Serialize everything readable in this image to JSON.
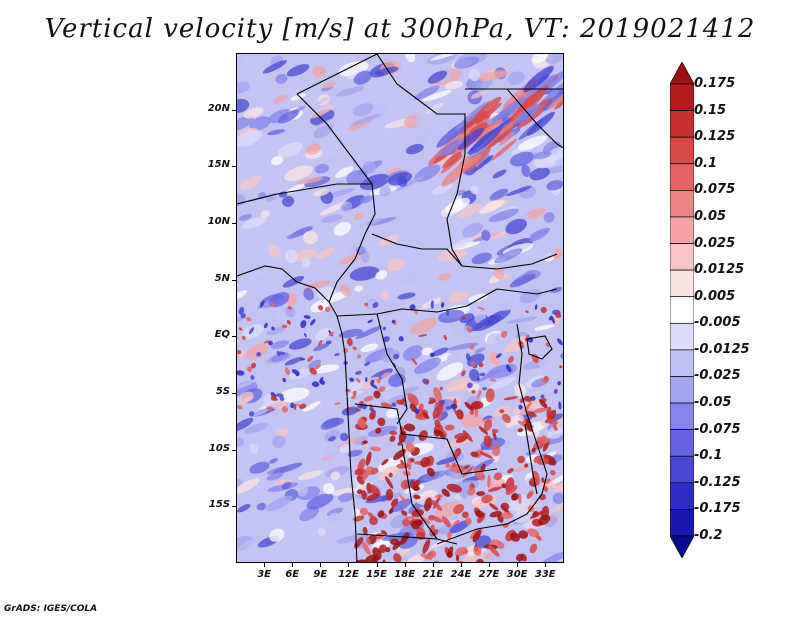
{
  "title": "Vertical velocity [m/s] at 300hPa, VT: 2019021412",
  "footer": "GrADS: IGES/COLA",
  "map": {
    "variable": "Vertical velocity",
    "units": "m/s",
    "level": "300hPa",
    "valid_time": "2019021412",
    "lon_range": [
      0,
      35
    ],
    "lat_range": [
      -20,
      25
    ],
    "lat_labels": [
      {
        "label": "20N",
        "lat": 20
      },
      {
        "label": "15N",
        "lat": 15
      },
      {
        "label": "10N",
        "lat": 10
      },
      {
        "label": "5N",
        "lat": 5
      },
      {
        "label": "EQ",
        "lat": 0
      },
      {
        "label": "5S",
        "lat": -5
      },
      {
        "label": "10S",
        "lat": -10
      },
      {
        "label": "15S",
        "lat": -15
      }
    ],
    "lon_labels": [
      {
        "label": "3E",
        "lon": 3
      },
      {
        "label": "6E",
        "lon": 6
      },
      {
        "label": "9E",
        "lon": 9
      },
      {
        "label": "12E",
        "lon": 12
      },
      {
        "label": "15E",
        "lon": 15
      },
      {
        "label": "18E",
        "lon": 18
      },
      {
        "label": "21E",
        "lon": 21
      },
      {
        "label": "24E",
        "lon": 24
      },
      {
        "label": "27E",
        "lon": 27
      },
      {
        "label": "30E",
        "lon": 30
      },
      {
        "label": "33E",
        "lon": 33
      }
    ]
  },
  "colorbar": {
    "levels": [
      "0.175",
      "0.15",
      "0.125",
      "0.1",
      "0.075",
      "0.05",
      "0.025",
      "0.0125",
      "0.005",
      "-0.005",
      "-0.0125",
      "-0.025",
      "-0.05",
      "-0.075",
      "-0.1",
      "-0.125",
      "-0.175",
      "-0.2"
    ],
    "colors": [
      "#a01010",
      "#b41c1c",
      "#c83030",
      "#d84848",
      "#e46464",
      "#ec8484",
      "#f4a4a4",
      "#f8c4c4",
      "#fce4e4",
      "#ffffff",
      "#dcdcfa",
      "#c0c0f6",
      "#a4a4f0",
      "#8484ea",
      "#6464e0",
      "#4848d4",
      "#2c2cc4",
      "#1818b0",
      "#0a0a90"
    ]
  }
}
